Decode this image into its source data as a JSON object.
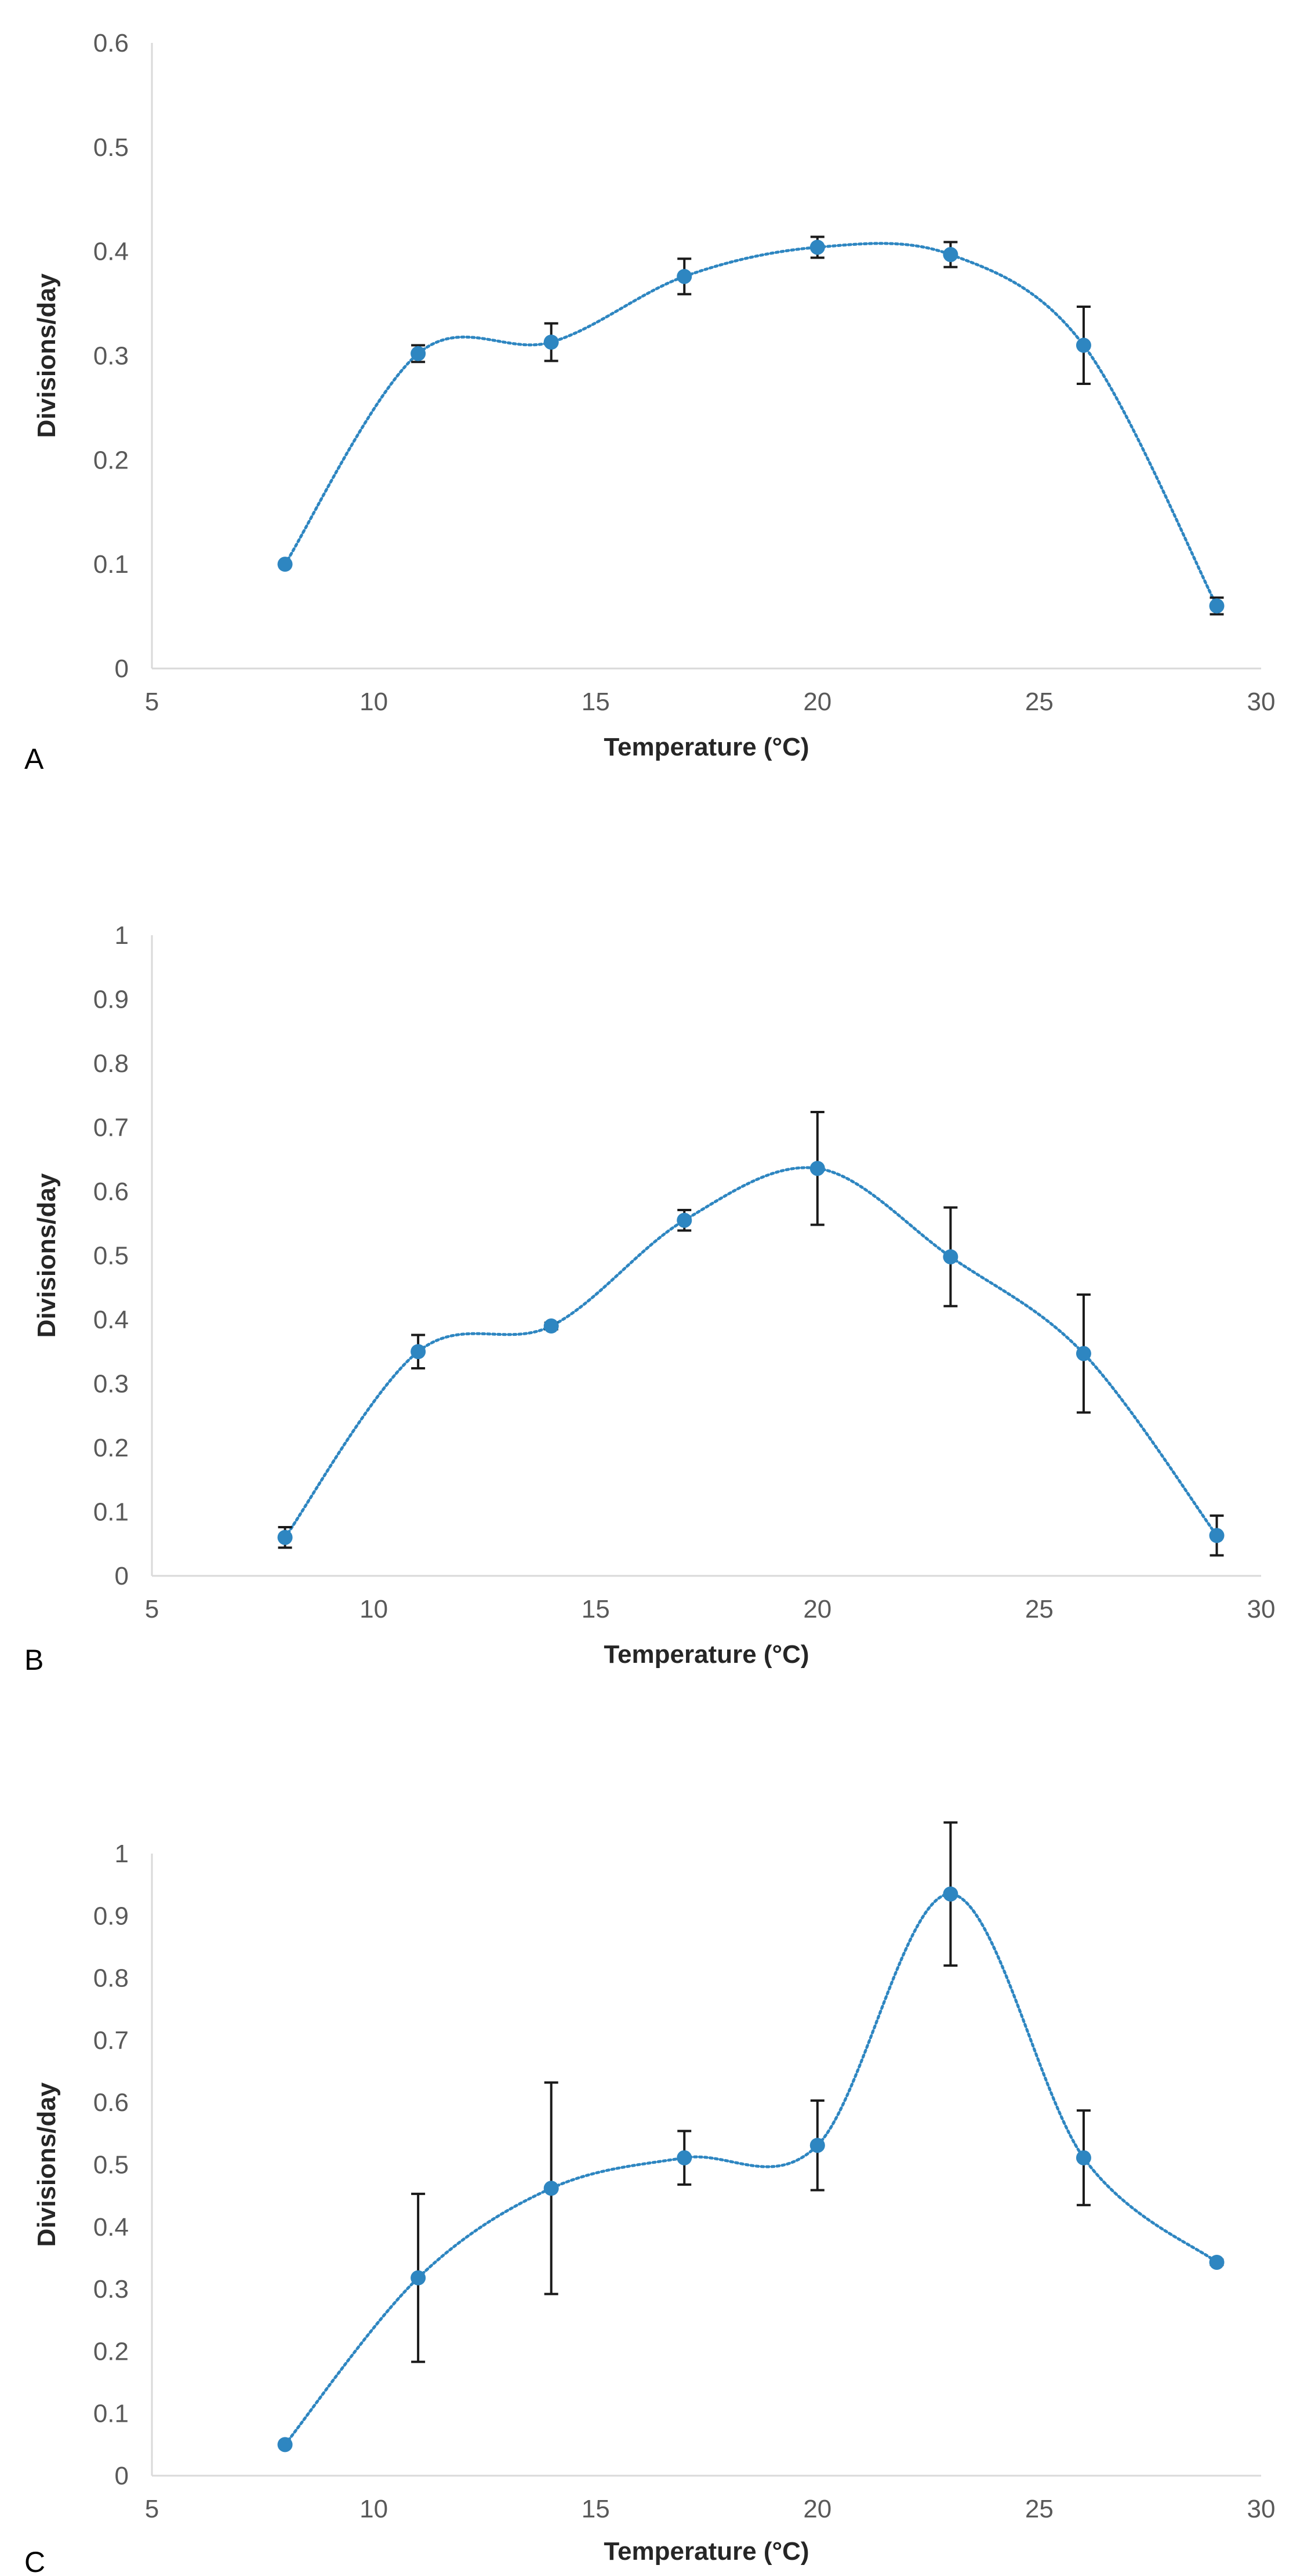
{
  "colors": {
    "series": "#2e86c1",
    "error_bar": "#1a1a1a",
    "axis": "#d9d9d9",
    "tick_text": "#595959",
    "title_text": "#262626"
  },
  "chart_data": [
    {
      "type": "scatter",
      "panel": "A",
      "xlabel": "Temperature (°C)",
      "ylabel": "Divisions/day",
      "xlim": [
        5,
        30
      ],
      "ylim": [
        0,
        0.6
      ],
      "xticks": [
        "5",
        "10",
        "15",
        "20",
        "25",
        "30"
      ],
      "yticks": [
        "0",
        "0.1",
        "0.2",
        "0.3",
        "0.4",
        "0.5",
        "0.6"
      ],
      "trendline": "smooth-dotted",
      "x": [
        8,
        11,
        14,
        17,
        20,
        23,
        26,
        29
      ],
      "y": [
        0.1,
        0.302,
        0.313,
        0.376,
        0.404,
        0.397,
        0.31,
        0.06
      ],
      "error": [
        0.0,
        0.008,
        0.018,
        0.017,
        0.01,
        0.012,
        0.037,
        0.008
      ]
    },
    {
      "type": "scatter",
      "panel": "B",
      "xlabel": "Temperature (°C)",
      "ylabel": "Divisions/day",
      "xlim": [
        5,
        30
      ],
      "ylim": [
        0,
        1
      ],
      "xticks": [
        "5",
        "10",
        "15",
        "20",
        "25",
        "30"
      ],
      "yticks": [
        "0",
        "0.1",
        "0.2",
        "0.3",
        "0.4",
        "0.5",
        "0.6",
        "0.7",
        "0.8",
        "0.9",
        "1"
      ],
      "trendline": "smooth-dotted",
      "x": [
        8,
        11,
        14,
        17,
        20,
        23,
        26,
        29
      ],
      "y": [
        0.06,
        0.35,
        0.39,
        0.555,
        0.636,
        0.498,
        0.347,
        0.063
      ],
      "error": [
        0.016,
        0.026,
        0.005,
        0.016,
        0.088,
        0.077,
        0.092,
        0.031
      ]
    },
    {
      "type": "scatter",
      "panel": "C",
      "xlabel": "Temperature (°C)",
      "ylabel": "Divisions/day",
      "xlim": [
        5,
        30
      ],
      "ylim": [
        0,
        1
      ],
      "xticks": [
        "5",
        "10",
        "15",
        "20",
        "25",
        "30"
      ],
      "yticks": [
        "0",
        "0.1",
        "0.2",
        "0.3",
        "0.4",
        "0.5",
        "0.6",
        "0.7",
        "0.8",
        "0.9",
        "1"
      ],
      "trendline": "smooth-dotted",
      "x": [
        8,
        11,
        14,
        17,
        20,
        23,
        26,
        29
      ],
      "y": [
        0.05,
        0.318,
        0.462,
        0.511,
        0.531,
        0.935,
        0.511,
        0.343
      ],
      "error": [
        0.0,
        0.135,
        0.17,
        0.043,
        0.072,
        0.115,
        0.076,
        0.004
      ]
    }
  ]
}
